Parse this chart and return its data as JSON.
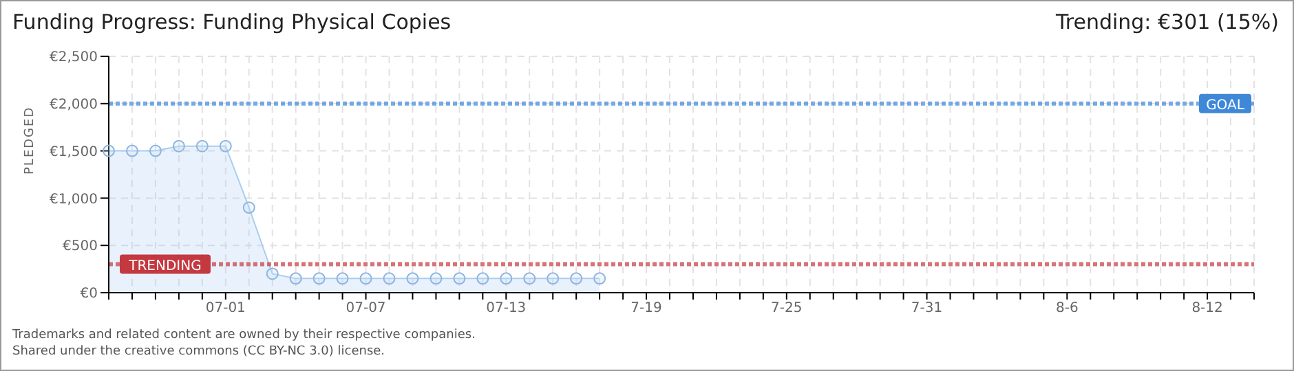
{
  "chart_data": {
    "type": "area",
    "title": "Funding Progress: Funding Physical Copies",
    "subtitle": "Trending: €301 (15%)",
    "ylabel": "PLEDGED",
    "categories": [
      null,
      null,
      null,
      null,
      null,
      "07-01",
      null,
      null,
      null,
      null,
      null,
      "07-07",
      null,
      null,
      null,
      null,
      null,
      "07-13",
      null,
      null,
      null,
      null,
      null,
      "7-19",
      null,
      null,
      null,
      null,
      null,
      "7-25",
      null,
      null,
      null,
      null,
      null,
      "7-31",
      null,
      null,
      null,
      null,
      null,
      "8-6",
      null,
      null,
      null,
      null,
      null,
      "8-12",
      null,
      null
    ],
    "series": [
      {
        "color": "#a9cdf2",
        "values": [
          1500,
          1500,
          1500,
          1550,
          1550,
          1550,
          900,
          200,
          150,
          150,
          150,
          150,
          150,
          150,
          150,
          150,
          150,
          150,
          150,
          150,
          150,
          150,
          null,
          null,
          null,
          null,
          null,
          null,
          null,
          null,
          null,
          null,
          null,
          null,
          null,
          null,
          null,
          null,
          null,
          null,
          null,
          null,
          null,
          null,
          null,
          null,
          null,
          null,
          null,
          null
        ]
      }
    ],
    "ylim": [
      0,
      2500
    ],
    "yticks": [
      {
        "value": 0,
        "label": "€0"
      },
      {
        "value": 500,
        "label": "€500"
      },
      {
        "value": 1000,
        "label": "€1,000"
      },
      {
        "value": 1500,
        "label": "€1,500"
      },
      {
        "value": 2000,
        "label": "€2,000"
      },
      {
        "value": 2500,
        "label": "€2,500"
      }
    ],
    "grid": true,
    "marker": "circle",
    "line_style": "solid",
    "legend": false,
    "ref_lines": [
      {
        "axis": "y",
        "value": 2000,
        "label": "GOAL",
        "color": "#3f88d8",
        "line_style": "dotted"
      },
      {
        "axis": "y",
        "value": 301,
        "label": "TRENDING",
        "color": "#c4383f",
        "line_style": "dotted"
      }
    ],
    "annotations": [
      "Trademarks and related content are owned by their respective companies.",
      "Shared under the creative commons (CC BY-NC 3.0) license."
    ]
  }
}
